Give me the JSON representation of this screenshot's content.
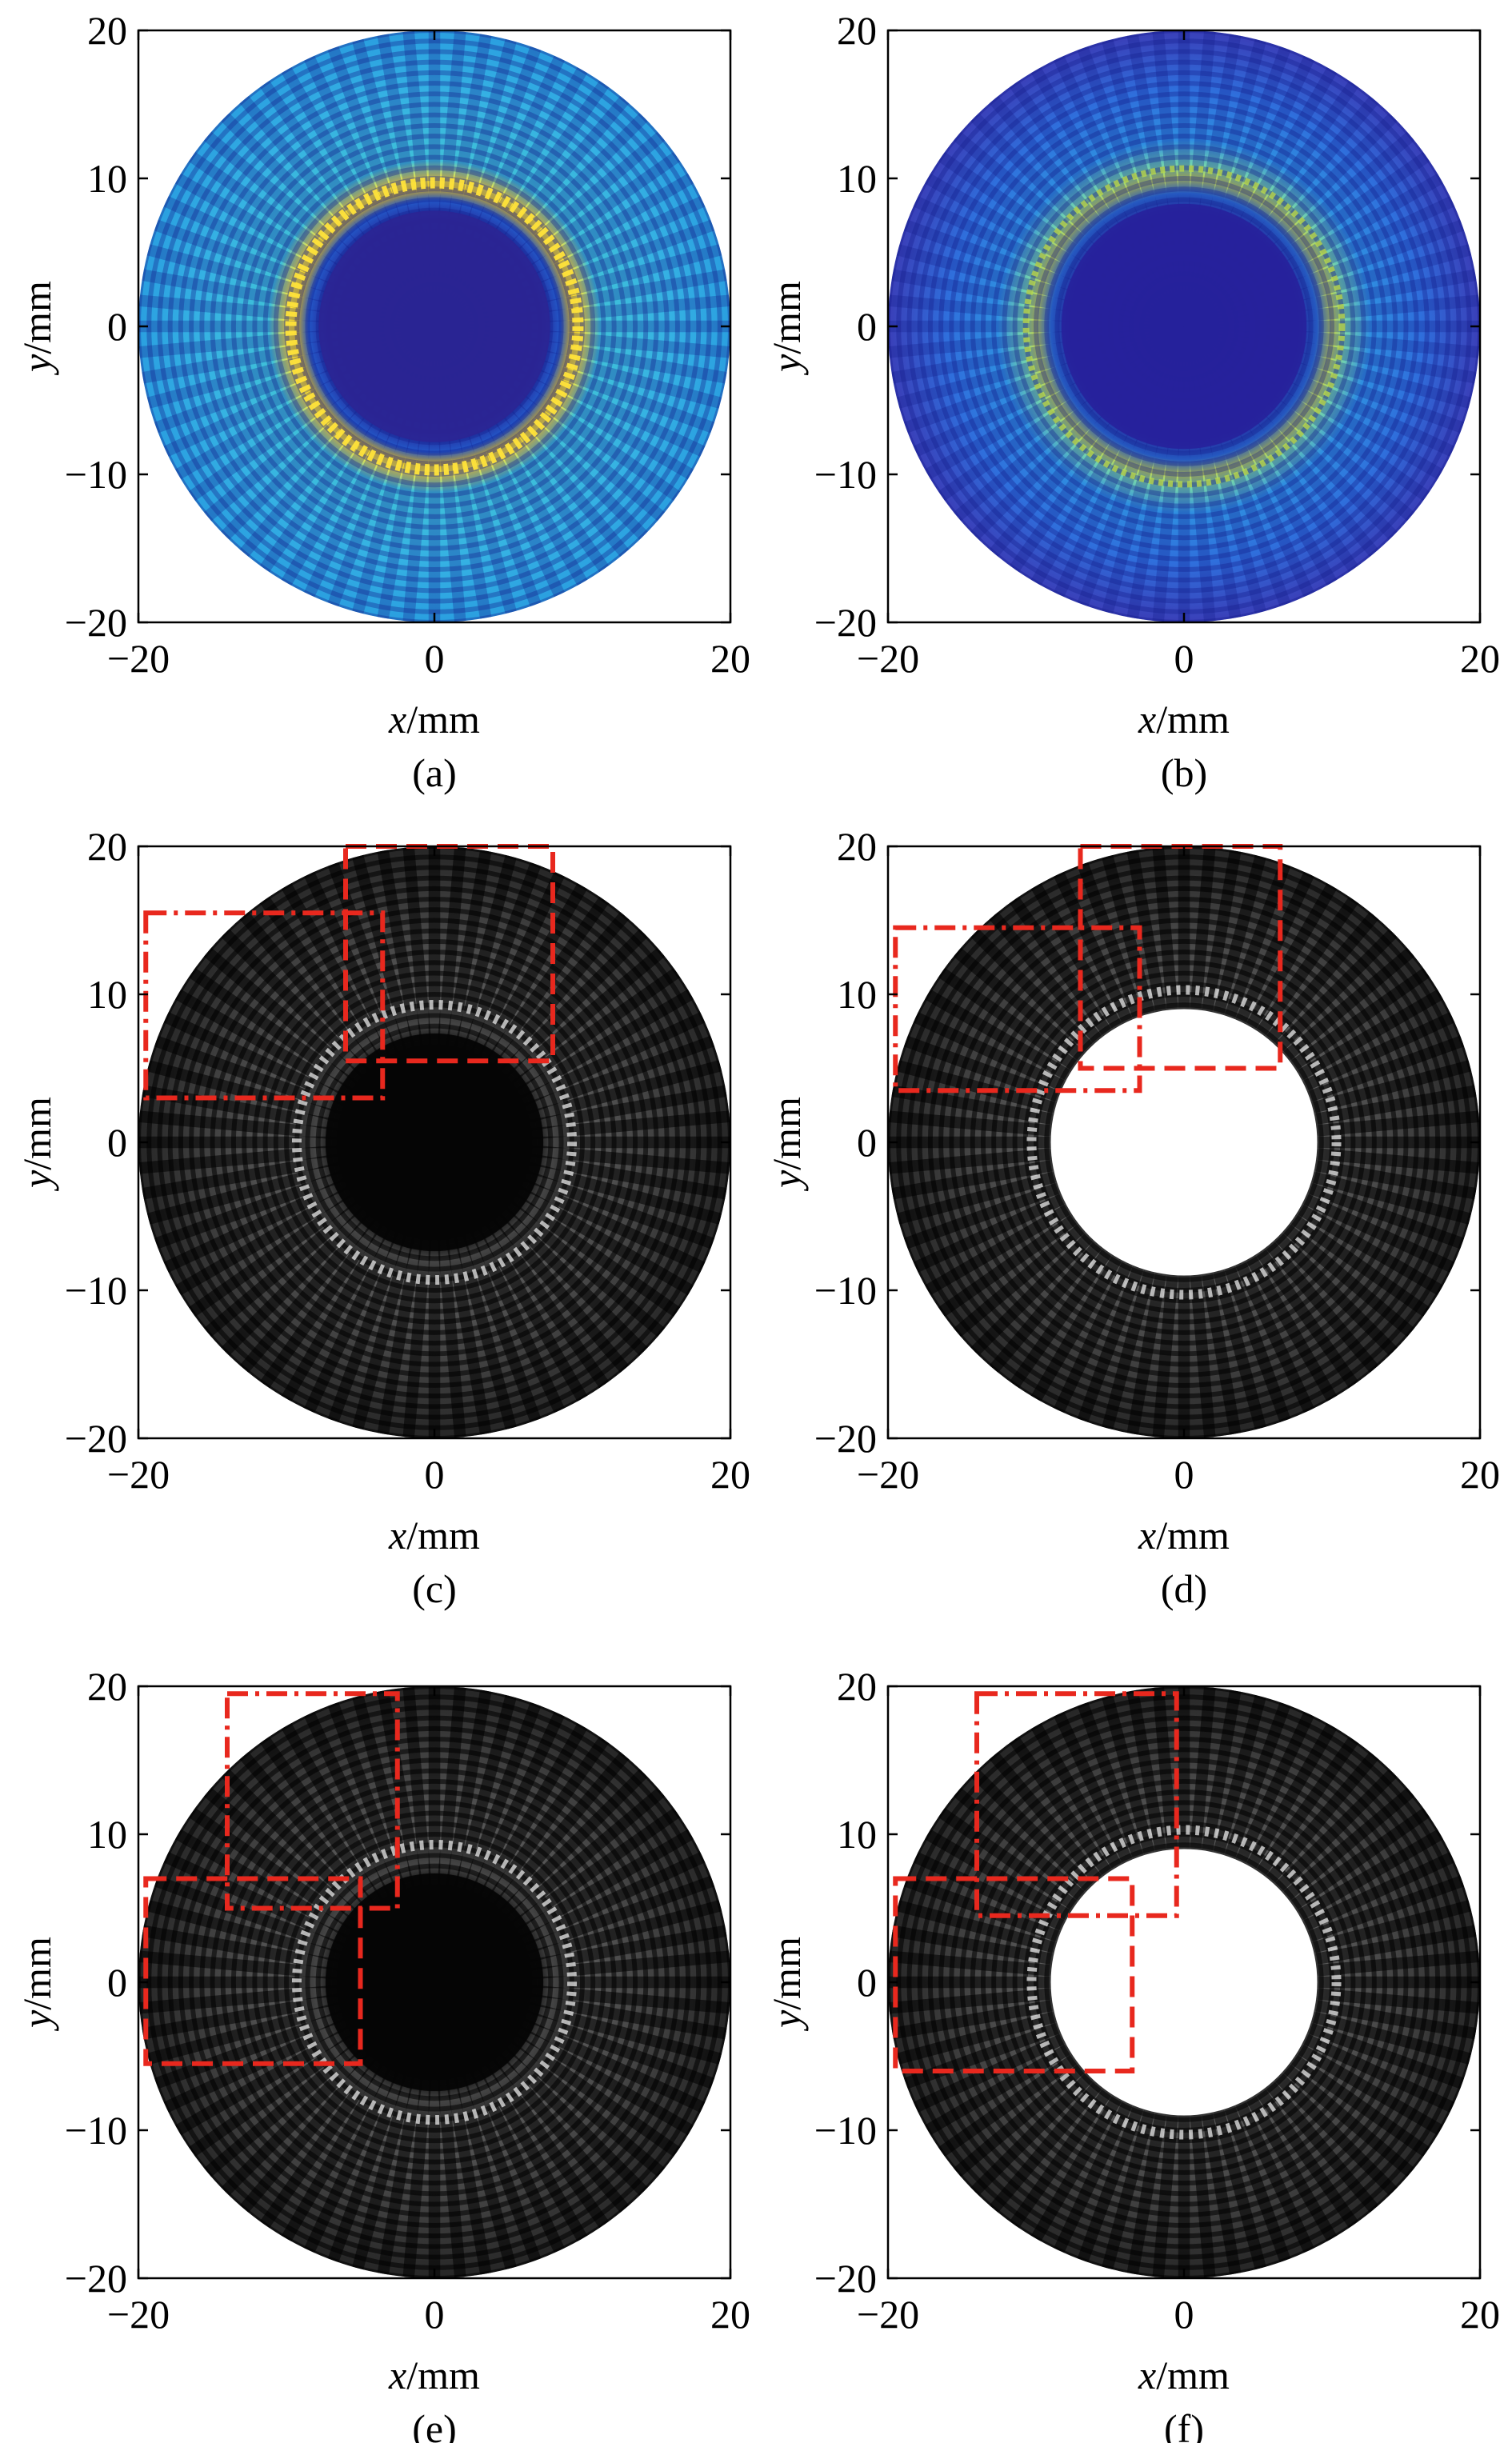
{
  "figure": {
    "x_axis_label": "x",
    "y_axis_label": "y",
    "unit_suffix": "/mm"
  },
  "chart_data": [
    {
      "type": "heatmap",
      "panel": "(a)",
      "colormap": "parula",
      "xlabel": "x/mm",
      "ylabel": "y/mm",
      "xlim": [
        -20,
        20
      ],
      "ylim": [
        -20,
        20
      ],
      "xticks": [
        "−20",
        "0",
        "20"
      ],
      "yticks": [
        "20",
        "10",
        "0",
        "−10",
        "−20"
      ],
      "aperture_radius": 20,
      "dark_core_radius": 8.5,
      "bright_ring_radius": 10,
      "pattern": "circular aperture with dark core and bright yellow ring"
    },
    {
      "type": "heatmap",
      "panel": "(b)",
      "colormap": "parula",
      "xlabel": "x/mm",
      "ylabel": "y/mm",
      "xlim": [
        -20,
        20
      ],
      "ylim": [
        -20,
        20
      ],
      "xticks": [
        "−20",
        "0",
        "20"
      ],
      "yticks": [
        "20",
        "10",
        "0",
        "−10",
        "−20"
      ],
      "aperture_radius": 20,
      "dark_core_radius": 9,
      "bright_ring_radius": 11,
      "pattern": "distorted dark core with speckled background"
    },
    {
      "type": "heatmap",
      "panel": "(c)",
      "colormap": "gray",
      "xlabel": "x/mm",
      "ylabel": "y/mm",
      "xlim": [
        -20,
        20
      ],
      "ylim": [
        -20,
        20
      ],
      "xticks": [
        "−20",
        "0",
        "20"
      ],
      "yticks": [
        "20",
        "10",
        "0",
        "−10",
        "−20"
      ],
      "aperture_radius": 20,
      "dark_core_radius": 8,
      "hole": false,
      "boxes": [
        {
          "style": "dash-dot",
          "x": [
            -19.5,
            -3.5
          ],
          "y": [
            3,
            15.5
          ]
        },
        {
          "style": "dashed",
          "x": [
            -6,
            8
          ],
          "y": [
            5.5,
            20
          ]
        }
      ]
    },
    {
      "type": "heatmap",
      "panel": "(d)",
      "colormap": "gray",
      "xlabel": "x/mm",
      "ylabel": "y/mm",
      "xlim": [
        -20,
        20
      ],
      "ylim": [
        -20,
        20
      ],
      "xticks": [
        "−20",
        "0",
        "20"
      ],
      "yticks": [
        "20",
        "10",
        "0",
        "−10",
        "−20"
      ],
      "aperture_radius": 20,
      "hole_radius": 9,
      "hole": true,
      "boxes": [
        {
          "style": "dash-dot",
          "x": [
            -19.5,
            -3
          ],
          "y": [
            3.5,
            14.5
          ]
        },
        {
          "style": "dashed",
          "x": [
            -7,
            6.5
          ],
          "y": [
            5,
            20
          ]
        }
      ]
    },
    {
      "type": "heatmap",
      "panel": "(e)",
      "colormap": "gray",
      "xlabel": "x/mm",
      "ylabel": "y/mm",
      "xlim": [
        -20,
        20
      ],
      "ylim": [
        -20,
        20
      ],
      "xticks": [
        "−20",
        "0",
        "20"
      ],
      "yticks": [
        "20",
        "10",
        "0",
        "−10",
        "−20"
      ],
      "aperture_radius": 20,
      "dark_core_radius": 8,
      "hole": false,
      "boxes": [
        {
          "style": "dash-dot",
          "x": [
            -14,
            -2.5
          ],
          "y": [
            5,
            19.5
          ]
        },
        {
          "style": "dashed",
          "x": [
            -19.5,
            -5
          ],
          "y": [
            -5.5,
            7
          ]
        }
      ]
    },
    {
      "type": "heatmap",
      "panel": "(f)",
      "colormap": "gray",
      "xlabel": "x/mm",
      "ylabel": "y/mm",
      "xlim": [
        -20,
        20
      ],
      "ylim": [
        -20,
        20
      ],
      "xticks": [
        "−20",
        "0",
        "20"
      ],
      "yticks": [
        "20",
        "10",
        "0",
        "−10",
        "−20"
      ],
      "aperture_radius": 20,
      "hole_radius": 9,
      "hole": true,
      "boxes": [
        {
          "style": "dash-dot",
          "x": [
            -14,
            -0.5
          ],
          "y": [
            4.5,
            19.5
          ]
        },
        {
          "style": "dashed",
          "x": [
            -19.5,
            -3.5
          ],
          "y": [
            -6,
            7
          ]
        }
      ]
    }
  ]
}
